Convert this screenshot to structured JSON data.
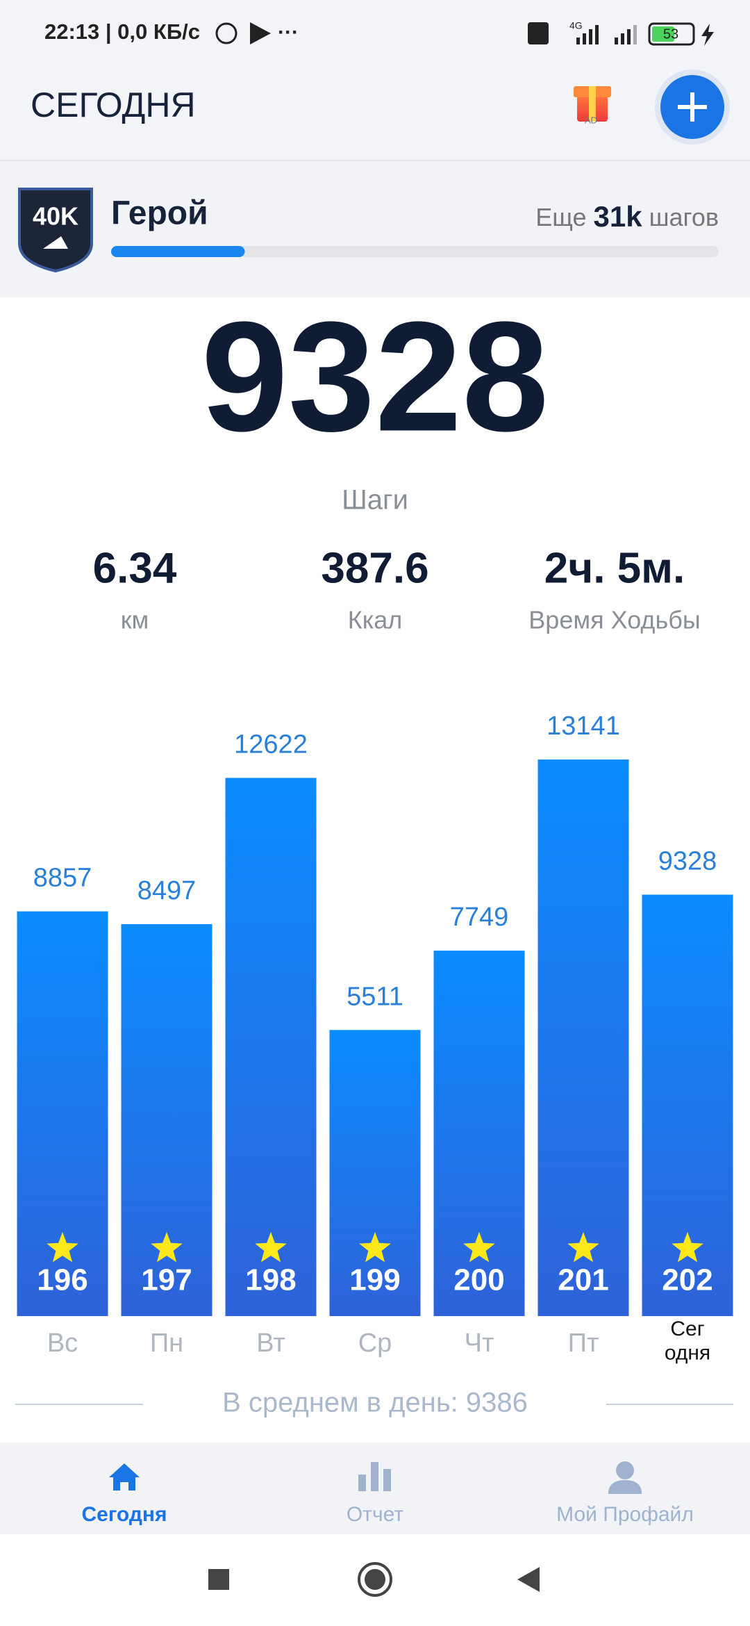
{
  "status_bar": {
    "time": "22:13 | 0,0 КБ/с",
    "network": "4G",
    "battery": "53"
  },
  "header": {
    "title": "СЕГОДНЯ",
    "ad": "AD"
  },
  "level": {
    "badge": "40K",
    "name": "Герой",
    "remaining_prefix": "Еще",
    "remaining": "31k",
    "remaining_suffix": "шагов",
    "progress": 22
  },
  "summary": {
    "steps": 9328,
    "steps_label": "Шаги",
    "stats": [
      {
        "value": "6.34",
        "label": "км"
      },
      {
        "value": "387.6",
        "label": "Ккал"
      },
      {
        "value": "2ч. 5м.",
        "label": "Время Ходьбы"
      }
    ]
  },
  "chart_data": {
    "type": "bar",
    "categories": [
      "Вс",
      "Пн",
      "Вт",
      "Ср",
      "Чт",
      "Пт",
      "Сег\nодня"
    ],
    "values": [
      8857,
      8497,
      12622,
      5511,
      7749,
      13141,
      9328
    ],
    "day_numbers": [
      196,
      197,
      198,
      199,
      200,
      201,
      202
    ],
    "color": "#0a8cff",
    "ylim": [
      -2560,
      13141
    ],
    "average": "В среднем в день: 9386"
  },
  "nav": {
    "items": [
      "Сегодня",
      "Отчет",
      "Мой Профайл"
    ]
  }
}
